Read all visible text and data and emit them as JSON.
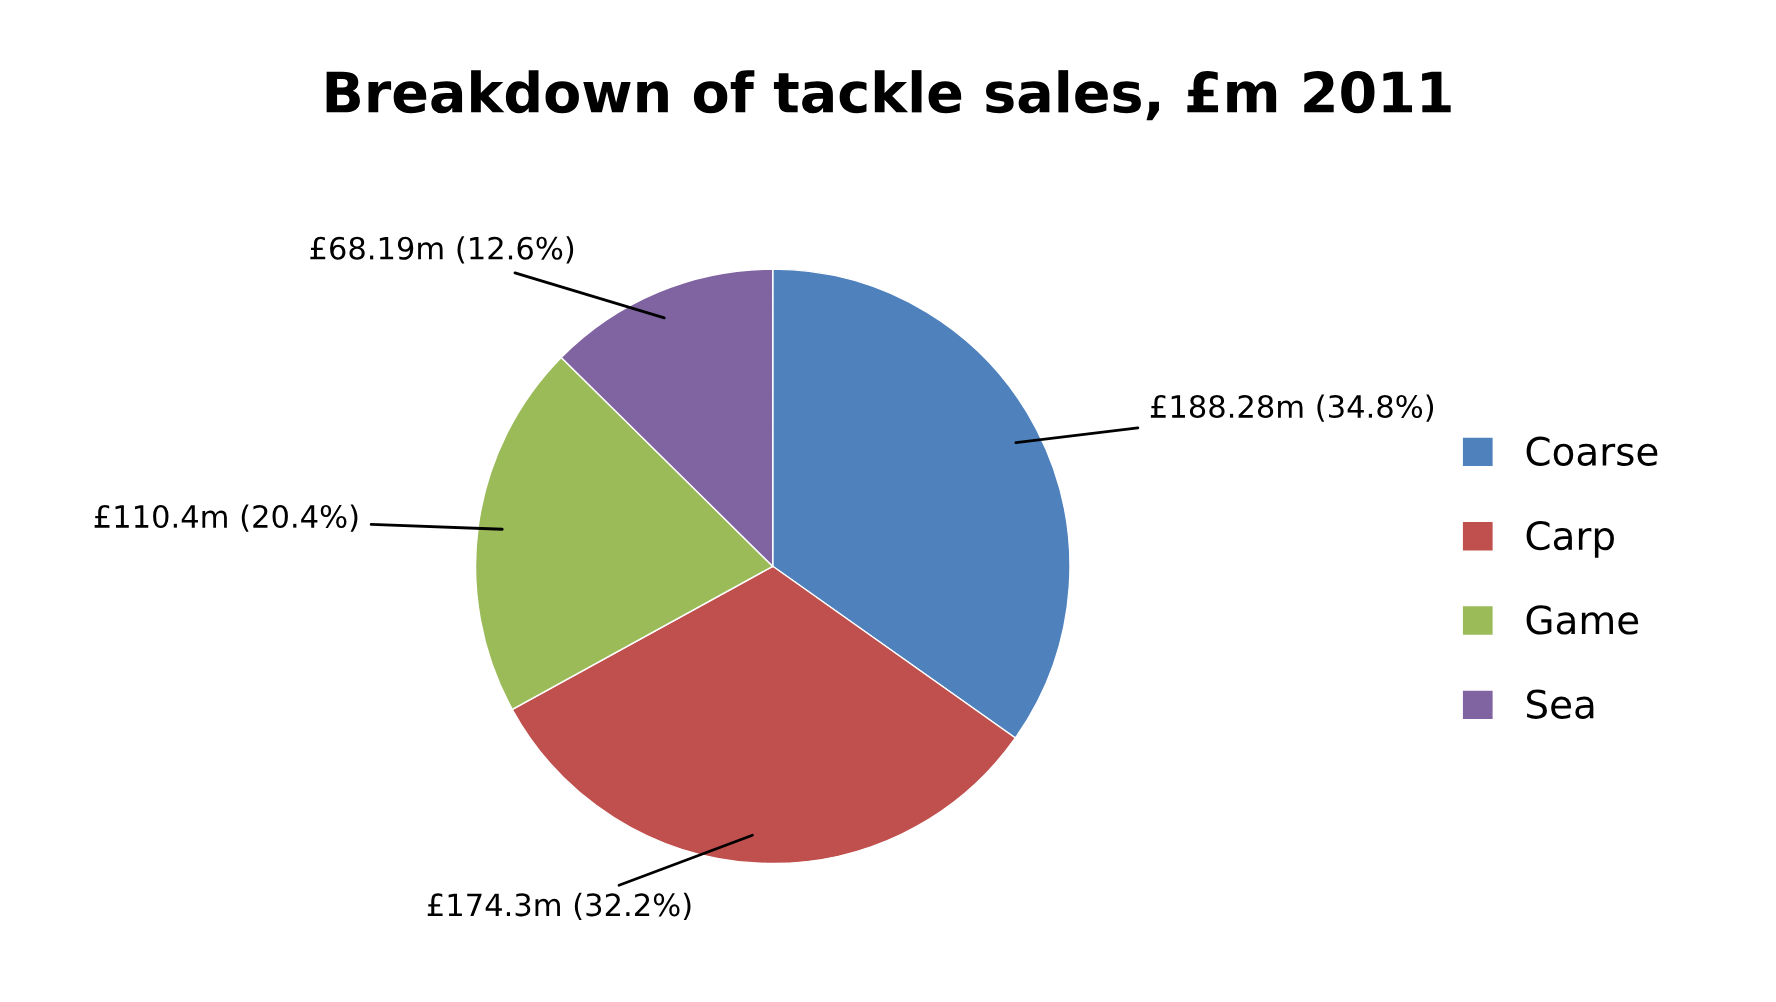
{
  "chart_data": {
    "type": "pie",
    "title": "Breakdown of tackle sales, £m 2011",
    "categories": [
      "Coarse",
      "Carp",
      "Game",
      "Sea"
    ],
    "values": [
      34.8,
      32.2,
      20.4,
      12.6
    ],
    "colors": [
      "#4f81bd",
      "#c0504d",
      "#9bbb59",
      "#8064a2"
    ],
    "value_labels": [
      "£188.28m (34.8%)",
      "£174.3m (32.2%)",
      "£110.4m (20.4%)",
      "£68.19m (12.6%)"
    ],
    "legend": "right"
  }
}
